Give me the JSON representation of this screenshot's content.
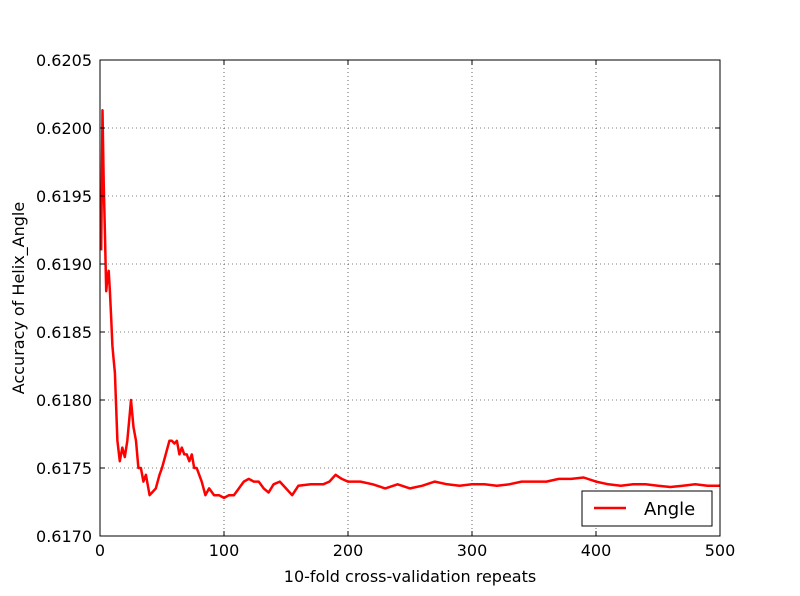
{
  "chart_data": {
    "type": "line",
    "title": "",
    "xlabel": "10-fold cross-validation repeats",
    "ylabel": "Accuracy of Helix_Angle",
    "xlim": [
      0,
      500
    ],
    "ylim": [
      0.617,
      0.6205
    ],
    "xticks": [
      0,
      100,
      200,
      300,
      400,
      500
    ],
    "xtick_labels": [
      "0",
      "100",
      "200",
      "300",
      "400",
      "500"
    ],
    "yticks": [
      0.617,
      0.6175,
      0.618,
      0.6185,
      0.619,
      0.6195,
      0.62,
      0.6205
    ],
    "ytick_labels": [
      "0.6170",
      "0.6175",
      "0.6180",
      "0.6185",
      "0.6190",
      "0.6195",
      "0.6200",
      "0.6205"
    ],
    "grid": true,
    "legend_position": "lower-right",
    "series": [
      {
        "name": "Angle",
        "color": "#ff0000",
        "x": [
          1,
          2,
          3,
          4,
          5,
          6,
          7,
          8,
          9,
          10,
          11,
          12,
          14,
          16,
          18,
          20,
          22,
          24,
          25,
          27,
          29,
          31,
          33,
          35,
          37,
          40,
          42,
          45,
          48,
          50,
          53,
          56,
          58,
          60,
          62,
          64,
          66,
          68,
          70,
          72,
          74,
          76,
          78,
          80,
          82,
          85,
          88,
          92,
          96,
          100,
          104,
          108,
          112,
          116,
          120,
          124,
          128,
          132,
          136,
          140,
          145,
          150,
          155,
          160,
          170,
          180,
          185,
          190,
          195,
          200,
          210,
          220,
          230,
          240,
          250,
          260,
          270,
          280,
          290,
          300,
          310,
          320,
          330,
          340,
          350,
          360,
          370,
          380,
          390,
          400,
          410,
          420,
          430,
          440,
          450,
          460,
          470,
          480,
          490,
          500
        ],
        "y": [
          0.6191,
          0.62013,
          0.6196,
          0.6192,
          0.6188,
          0.6189,
          0.61895,
          0.6188,
          0.6186,
          0.6184,
          0.6183,
          0.6182,
          0.6177,
          0.61755,
          0.61765,
          0.61758,
          0.6177,
          0.6179,
          0.618,
          0.6178,
          0.6177,
          0.6175,
          0.6175,
          0.6174,
          0.61745,
          0.6173,
          0.61732,
          0.61735,
          0.61745,
          0.6175,
          0.6176,
          0.6177,
          0.6177,
          0.61768,
          0.6177,
          0.6176,
          0.61765,
          0.6176,
          0.6176,
          0.61755,
          0.6176,
          0.6175,
          0.6175,
          0.61745,
          0.6174,
          0.6173,
          0.61735,
          0.6173,
          0.6173,
          0.61728,
          0.6173,
          0.6173,
          0.61735,
          0.6174,
          0.61742,
          0.6174,
          0.6174,
          0.61735,
          0.61732,
          0.61738,
          0.6174,
          0.61735,
          0.6173,
          0.61737,
          0.61738,
          0.61738,
          0.6174,
          0.61745,
          0.61742,
          0.6174,
          0.6174,
          0.61738,
          0.61735,
          0.61738,
          0.61735,
          0.61737,
          0.6174,
          0.61738,
          0.61737,
          0.61738,
          0.61738,
          0.61737,
          0.61738,
          0.6174,
          0.6174,
          0.6174,
          0.61742,
          0.61742,
          0.61743,
          0.6174,
          0.61738,
          0.61737,
          0.61738,
          0.61738,
          0.61737,
          0.61736,
          0.61737,
          0.61738,
          0.61737,
          0.61737
        ]
      }
    ]
  }
}
